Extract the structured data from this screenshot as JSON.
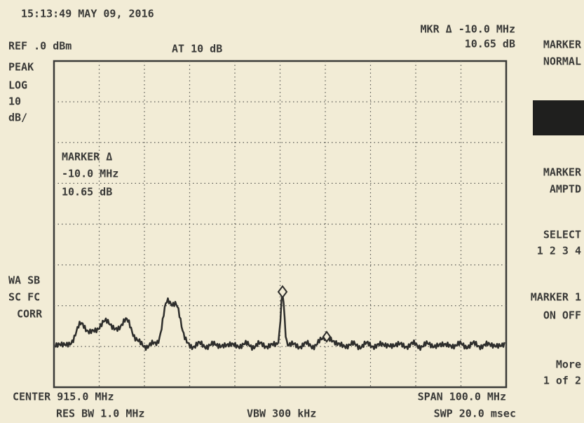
{
  "header": {
    "timestamp": "15:13:49 MAY 09, 2016",
    "ref": "REF .0 dBm",
    "attenuation": "AT 10 dB",
    "marker_delta": "MKR Δ -10.0 MHz",
    "marker_level": "10.65 dB"
  },
  "left_labels": {
    "detector": "PEAK",
    "scale": [
      "LOG",
      "10",
      "dB/"
    ],
    "flags": [
      "WA SB",
      "SC FC",
      "CORR"
    ]
  },
  "marker_annotation": [
    "MARKER Δ",
    "-10.0 MHz",
    "10.65 dB"
  ],
  "footer": {
    "center": "CENTER 915.0 MHz",
    "span": "SPAN 100.0 MHz",
    "res_bw": "RES BW 1.0 MHz",
    "vbw": "VBW 300 kHz",
    "swp": "SWP 20.0 msec"
  },
  "softkeys": [
    [
      "MARKER",
      "NORMAL"
    ],
    [
      "MARKER",
      "AMPTD"
    ],
    [
      "SELECT",
      "1 2 3 4"
    ],
    [
      "MARKER 1",
      "ON OFF"
    ],
    [
      "More",
      "1 of 2"
    ]
  ]
}
